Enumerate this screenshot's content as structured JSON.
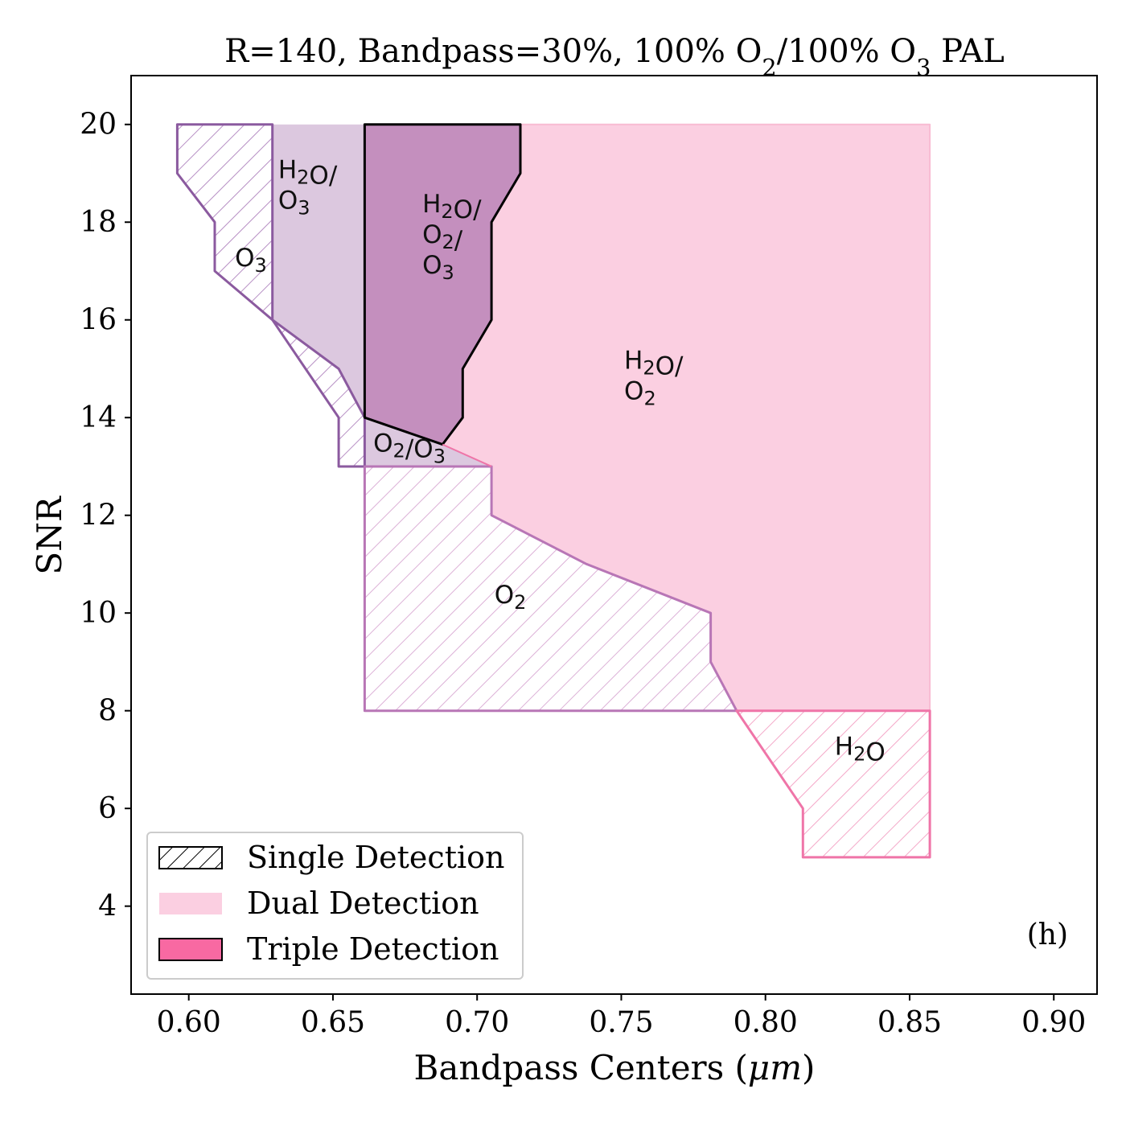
{
  "chart_data": {
    "type": "area",
    "title_parts": [
      "R=140, Bandpass=30%, 100% O",
      "2",
      "/100% O",
      "3",
      " PAL"
    ],
    "xlabel": "Bandpass Centers (",
    "xlabel_unit": "μm",
    "xlabel_close": ")",
    "ylabel": "SNR",
    "xlim": [
      0.58,
      0.915
    ],
    "ylim": [
      2.2,
      21.0
    ],
    "xticks": [
      0.6,
      0.65,
      0.7,
      0.75,
      0.8,
      0.85,
      0.9
    ],
    "xtick_labels": [
      "0.60",
      "0.65",
      "0.70",
      "0.75",
      "0.80",
      "0.85",
      "0.90"
    ],
    "yticks": [
      4,
      6,
      8,
      10,
      12,
      14,
      16,
      18,
      20
    ],
    "ytick_labels": [
      "4",
      "6",
      "8",
      "10",
      "12",
      "14",
      "16",
      "18",
      "20"
    ],
    "panel_label": "(h)",
    "legend": {
      "position": "lower-left",
      "entries": [
        {
          "label": "Single Detection",
          "style": "hatch"
        },
        {
          "label": "Dual Detection",
          "style": "fill"
        },
        {
          "label": "Triple Detection",
          "style": "fill-edge"
        }
      ]
    },
    "colors": {
      "h2o_o2_fill": "#fbcfe1",
      "h2o_o3_fill": "#dcc8df",
      "o2_o3_fill": "#dcc8df",
      "triple_fill": "#c48fbe",
      "o3_edge": "#8b5a9f",
      "o2_edge": "#b876b6",
      "h2o_edge": "#ef75a8",
      "legend_triple": "#f869a2"
    },
    "regions": [
      {
        "kind": "dual",
        "species": "H2O/O2",
        "points": [
          [
            0.661,
            14.0
          ],
          [
            0.661,
            20.0
          ],
          [
            0.857,
            20.0
          ],
          [
            0.857,
            8.0
          ],
          [
            0.79,
            8.0
          ],
          [
            0.781,
            9.0
          ],
          [
            0.781,
            10.0
          ],
          [
            0.738,
            11.0
          ],
          [
            0.705,
            12.0
          ],
          [
            0.705,
            13.0
          ],
          [
            0.688,
            13.45
          ]
        ]
      },
      {
        "kind": "dual",
        "species": "H2O/O3",
        "points": [
          [
            0.629,
            20.0
          ],
          [
            0.661,
            20.0
          ],
          [
            0.661,
            14.0
          ],
          [
            0.652,
            15.0
          ],
          [
            0.629,
            16.0
          ]
        ]
      },
      {
        "kind": "dual",
        "species": "O2/O3",
        "points": [
          [
            0.661,
            14.0
          ],
          [
            0.688,
            13.45
          ],
          [
            0.705,
            13.0
          ],
          [
            0.661,
            13.0
          ]
        ]
      },
      {
        "kind": "single",
        "species": "O3",
        "points": [
          [
            0.596,
            20.0
          ],
          [
            0.629,
            20.0
          ],
          [
            0.629,
            16.0
          ],
          [
            0.652,
            15.0
          ],
          [
            0.661,
            14.0
          ],
          [
            0.661,
            13.0
          ],
          [
            0.652,
            13.0
          ],
          [
            0.652,
            14.0
          ],
          [
            0.629,
            16.0
          ],
          [
            0.609,
            17.0
          ],
          [
            0.609,
            18.0
          ],
          [
            0.596,
            19.0
          ]
        ]
      },
      {
        "kind": "single",
        "species": "O2",
        "points": [
          [
            0.661,
            13.0
          ],
          [
            0.705,
            13.0
          ],
          [
            0.705,
            12.0
          ],
          [
            0.738,
            11.0
          ],
          [
            0.781,
            10.0
          ],
          [
            0.781,
            9.0
          ],
          [
            0.79,
            8.0
          ],
          [
            0.661,
            8.0
          ]
        ]
      },
      {
        "kind": "single",
        "species": "H2O",
        "points": [
          [
            0.79,
            8.0
          ],
          [
            0.857,
            8.0
          ],
          [
            0.857,
            5.0
          ],
          [
            0.813,
            5.0
          ],
          [
            0.813,
            6.0
          ]
        ]
      },
      {
        "kind": "triple",
        "species": "H2O/O2/O3",
        "points": [
          [
            0.661,
            20.0
          ],
          [
            0.715,
            20.0
          ],
          [
            0.715,
            19.0
          ],
          [
            0.705,
            18.0
          ],
          [
            0.705,
            16.0
          ],
          [
            0.695,
            15.0
          ],
          [
            0.695,
            14.0
          ],
          [
            0.688,
            13.45
          ],
          [
            0.661,
            14.0
          ]
        ]
      }
    ],
    "region_labels": [
      {
        "lines": [
          [
            [
              "H",
              ""
            ],
            [
              "2",
              "sub"
            ],
            [
              "O/",
              ""
            ]
          ],
          [
            [
              "O",
              ""
            ],
            [
              "3",
              "sub"
            ]
          ]
        ],
        "x": 0.631,
        "y": 18.9
      },
      {
        "lines": [
          [
            [
              "H",
              ""
            ],
            [
              "2",
              "sub"
            ],
            [
              "O/",
              ""
            ]
          ],
          [
            [
              "O",
              ""
            ],
            [
              "2",
              "sub"
            ],
            [
              "/",
              ""
            ]
          ],
          [
            [
              "O",
              ""
            ],
            [
              "3",
              "sub"
            ]
          ]
        ],
        "x": 0.681,
        "y": 18.2
      },
      {
        "lines": [
          [
            [
              "O",
              ""
            ],
            [
              "3",
              "sub"
            ]
          ]
        ],
        "x": 0.616,
        "y": 17.1
      },
      {
        "lines": [
          [
            [
              "H",
              ""
            ],
            [
              "2",
              "sub"
            ],
            [
              "O/",
              ""
            ]
          ],
          [
            [
              "O",
              ""
            ],
            [
              "2",
              "sub"
            ]
          ]
        ],
        "x": 0.751,
        "y": 15.0
      },
      {
        "lines": [
          [
            [
              "O",
              ""
            ],
            [
              "2",
              "sub"
            ],
            [
              "/O",
              ""
            ],
            [
              "3",
              "sub"
            ]
          ]
        ],
        "x": 0.664,
        "y": 13.3
      },
      {
        "lines": [
          [
            [
              "O",
              ""
            ],
            [
              "2",
              "sub"
            ]
          ]
        ],
        "x": 0.706,
        "y": 10.2
      },
      {
        "lines": [
          [
            [
              "H",
              ""
            ],
            [
              "2",
              "sub"
            ],
            [
              "O",
              ""
            ]
          ]
        ],
        "x": 0.824,
        "y": 7.1
      }
    ]
  }
}
